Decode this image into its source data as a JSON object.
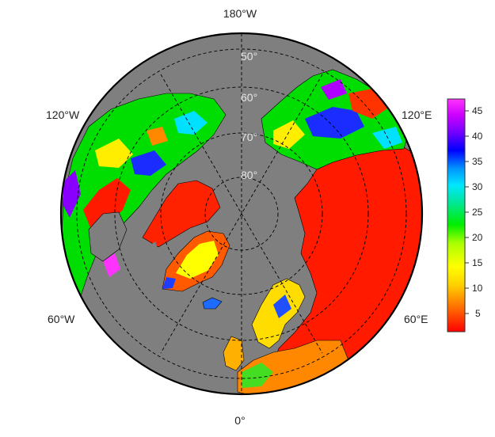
{
  "map": {
    "projection": "north polar stereographic",
    "ocean_color": "#7f7f7f",
    "border_color": "#000000",
    "longitude_labels": {
      "top": "180°W",
      "bottom": "0°",
      "upper_left": "120°W",
      "upper_right": "120°E",
      "lower_left": "60°W",
      "lower_right": "60°E"
    },
    "latitude_labels": [
      "50°",
      "60°",
      "70°",
      "80°"
    ],
    "latitude_label_color": "#e6e6e6"
  },
  "colorbar": {
    "ticks": [
      "45",
      "40",
      "35",
      "30",
      "25",
      "20",
      "15",
      "10",
      "5"
    ],
    "colors": [
      "#ff0000",
      "#ff6a00",
      "#ffd000",
      "#ffff00",
      "#aaff00",
      "#00ee00",
      "#00e7a0",
      "#00e7ff",
      "#0096ff",
      "#0000ff",
      "#7a00ff",
      "#cc00ff",
      "#ff33ff"
    ]
  }
}
